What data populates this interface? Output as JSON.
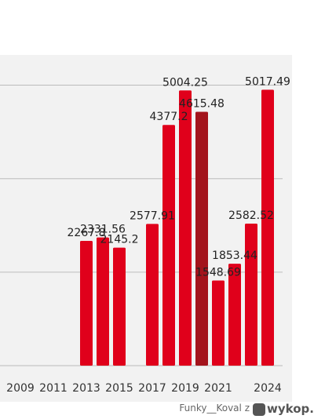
{
  "chart_data": {
    "type": "bar",
    "categories": [
      "2009",
      null,
      "2011",
      null,
      "2013",
      null,
      "2015",
      null,
      "2017",
      null,
      "2019",
      null,
      "2021",
      null,
      null,
      "2024"
    ],
    "series": [
      {
        "colors": [
          "#e0001b",
          "#e0001b",
          "#e0001b",
          "#e0001b",
          "#e0001b",
          "#e0001b",
          "#e0001b",
          "#e0001b",
          "#e0001b",
          "#e0001b",
          "#e0001b",
          "#a3141c",
          "#e0001b",
          "#e0001b",
          "#e0001b",
          "#e0001b"
        ],
        "values": [
          null,
          null,
          null,
          null,
          2267.8,
          2331.56,
          2145.2,
          null,
          2577.91,
          4377.2,
          5004.25,
          4615.48,
          1548.69,
          1853.44,
          2582.52,
          5017.49
        ]
      }
    ],
    "ylim": [
      0,
      5650
    ],
    "yticks": [
      0,
      1700,
      3400,
      5100
    ],
    "grid": true
  },
  "watermark": {
    "author": "Funky__Koval z",
    "site": "wykop.pl"
  }
}
